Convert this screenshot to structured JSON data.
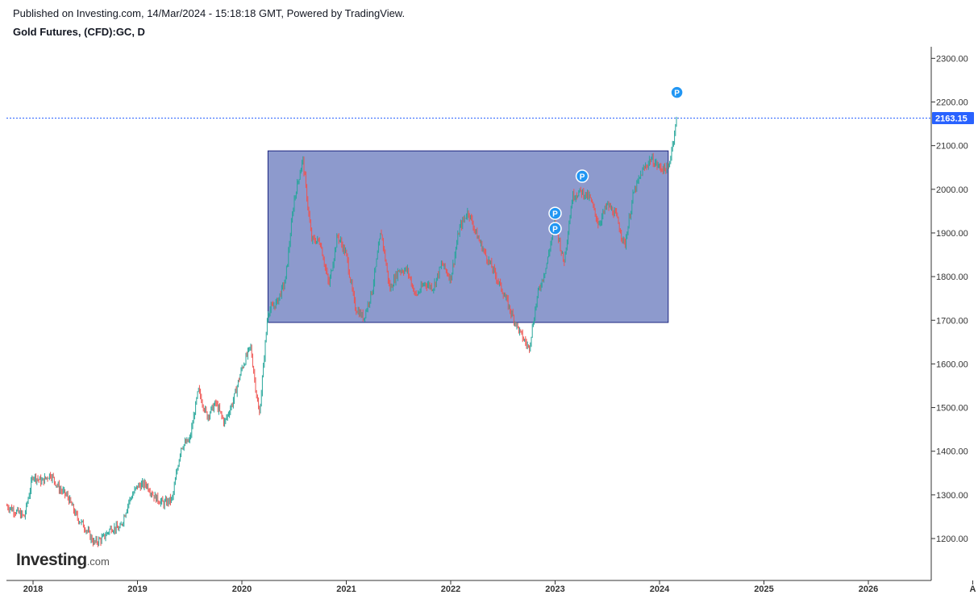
{
  "header": {
    "publish_line": "Published on Investing.com, 14/Mar/2024 - 15:18:18 GMT, Powered by TradingView.",
    "symbol_line": "Gold Futures, (CFD):GC, D"
  },
  "logo": {
    "main": "Investing",
    "suffix": ".com"
  },
  "chart_data": {
    "type": "line",
    "subtype": "candlestick",
    "ylim": [
      1100,
      2340
    ],
    "y_ticks": [
      "1200.00",
      "1300.00",
      "1400.00",
      "1500.00",
      "1600.00",
      "1700.00",
      "1800.00",
      "1900.00",
      "2000.00",
      "2100.00",
      "2200.00",
      "2300.00"
    ],
    "x_ticks": [
      "2018",
      "2019",
      "2020",
      "2021",
      "2022",
      "2023",
      "2024",
      "2025",
      "2026",
      "A"
    ],
    "current_price": 2163.15,
    "current_price_label": "2163.15",
    "range_box": {
      "from": "2020-04",
      "to": "2024-02",
      "low": 1695,
      "high": 2088
    },
    "markers": [
      {
        "label": "P",
        "date": "2023-01",
        "price": 1945
      },
      {
        "label": "P",
        "date": "2023-01",
        "price": 1910
      },
      {
        "label": "P",
        "date": "2023-03",
        "price": 2030
      },
      {
        "label": "P",
        "date": "2024-03",
        "price": 2222
      }
    ],
    "price_path": [
      [
        "2017-10",
        1275
      ],
      [
        "2017-12",
        1250
      ],
      [
        "2018-01",
        1345
      ],
      [
        "2018-02",
        1330
      ],
      [
        "2018-03",
        1348
      ],
      [
        "2018-04",
        1315
      ],
      [
        "2018-05",
        1295
      ],
      [
        "2018-06",
        1250
      ],
      [
        "2018-07",
        1225
      ],
      [
        "2018-08",
        1190
      ],
      [
        "2018-09",
        1200
      ],
      [
        "2018-10",
        1225
      ],
      [
        "2018-11",
        1222
      ],
      [
        "2018-12",
        1285
      ],
      [
        "2019-01",
        1320
      ],
      [
        "2019-02",
        1325
      ],
      [
        "2019-03",
        1295
      ],
      [
        "2019-04",
        1280
      ],
      [
        "2019-05",
        1290
      ],
      [
        "2019-06",
        1410
      ],
      [
        "2019-07",
        1425
      ],
      [
        "2019-08",
        1540
      ],
      [
        "2019-09",
        1480
      ],
      [
        "2019-10",
        1510
      ],
      [
        "2019-11",
        1465
      ],
      [
        "2019-12",
        1515
      ],
      [
        "2020-01",
        1590
      ],
      [
        "2020-02",
        1640
      ],
      [
        "2020-03",
        1480
      ],
      [
        "2020-04",
        1720
      ],
      [
        "2020-05",
        1740
      ],
      [
        "2020-06",
        1790
      ],
      [
        "2020-07",
        1975
      ],
      [
        "2020-08",
        2070
      ],
      [
        "2020-09",
        1885
      ],
      [
        "2020-10",
        1880
      ],
      [
        "2020-11",
        1780
      ],
      [
        "2020-12",
        1895
      ],
      [
        "2021-01",
        1850
      ],
      [
        "2021-02",
        1730
      ],
      [
        "2021-03",
        1705
      ],
      [
        "2021-04",
        1770
      ],
      [
        "2021-05",
        1905
      ],
      [
        "2021-06",
        1770
      ],
      [
        "2021-07",
        1815
      ],
      [
        "2021-08",
        1815
      ],
      [
        "2021-09",
        1755
      ],
      [
        "2021-10",
        1785
      ],
      [
        "2021-11",
        1775
      ],
      [
        "2021-12",
        1830
      ],
      [
        "2022-01",
        1795
      ],
      [
        "2022-02",
        1910
      ],
      [
        "2022-03",
        1950
      ],
      [
        "2022-04",
        1895
      ],
      [
        "2022-05",
        1850
      ],
      [
        "2022-06",
        1810
      ],
      [
        "2022-07",
        1765
      ],
      [
        "2022-08",
        1715
      ],
      [
        "2022-09",
        1670
      ],
      [
        "2022-10",
        1635
      ],
      [
        "2022-11",
        1760
      ],
      [
        "2022-12",
        1825
      ],
      [
        "2023-01",
        1930
      ],
      [
        "2023-02",
        1830
      ],
      [
        "2023-03",
        1985
      ],
      [
        "2023-04",
        1995
      ],
      [
        "2023-05",
        1980
      ],
      [
        "2023-06",
        1920
      ],
      [
        "2023-07",
        1965
      ],
      [
        "2023-08",
        1940
      ],
      [
        "2023-09",
        1870
      ],
      [
        "2023-10",
        1990
      ],
      [
        "2023-11",
        2040
      ],
      [
        "2023-12",
        2070
      ],
      [
        "2024-01",
        2050
      ],
      [
        "2024-02",
        2045
      ],
      [
        "2024-03",
        2163
      ]
    ]
  }
}
